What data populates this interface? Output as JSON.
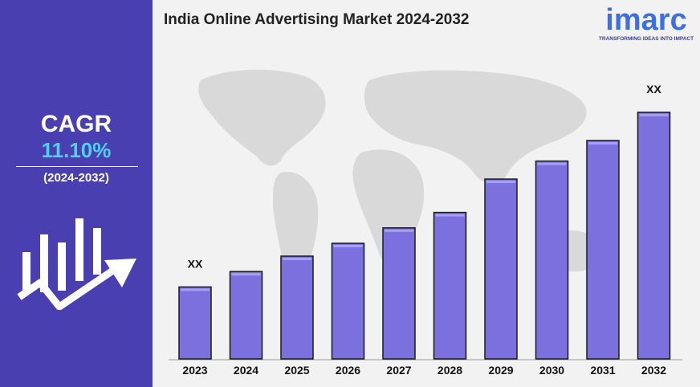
{
  "sidebar": {
    "cagr_label": "CAGR",
    "cagr_value": "11.10%",
    "cagr_period": "(2024-2032)"
  },
  "header": {
    "title": "India Online Advertising Market 2024-2032"
  },
  "brand": {
    "name": "imarc",
    "tagline": "TRANSFORMING IDEAS INTO IMPACT"
  },
  "colors": {
    "sidebar": "#4a3fb0",
    "accent": "#4fd2f2",
    "bar": "#7b70de",
    "bar_border": "#1a1a1a",
    "brand": "#3d6fe0"
  },
  "chart_data": {
    "type": "bar",
    "title": "India Online Advertising Market 2024-2032",
    "categories": [
      "2023",
      "2024",
      "2025",
      "2026",
      "2027",
      "2028",
      "2029",
      "2030",
      "2031",
      "2032"
    ],
    "values": [
      28,
      34,
      40,
      45,
      51,
      57,
      70,
      77,
      85,
      96
    ],
    "data_labels": [
      "XX",
      "",
      "",
      "",
      "",
      "",
      "",
      "",
      "",
      "XX"
    ],
    "xlabel": "",
    "ylabel": "",
    "ylim": [
      0,
      100
    ],
    "grid": false,
    "legend": "none"
  }
}
